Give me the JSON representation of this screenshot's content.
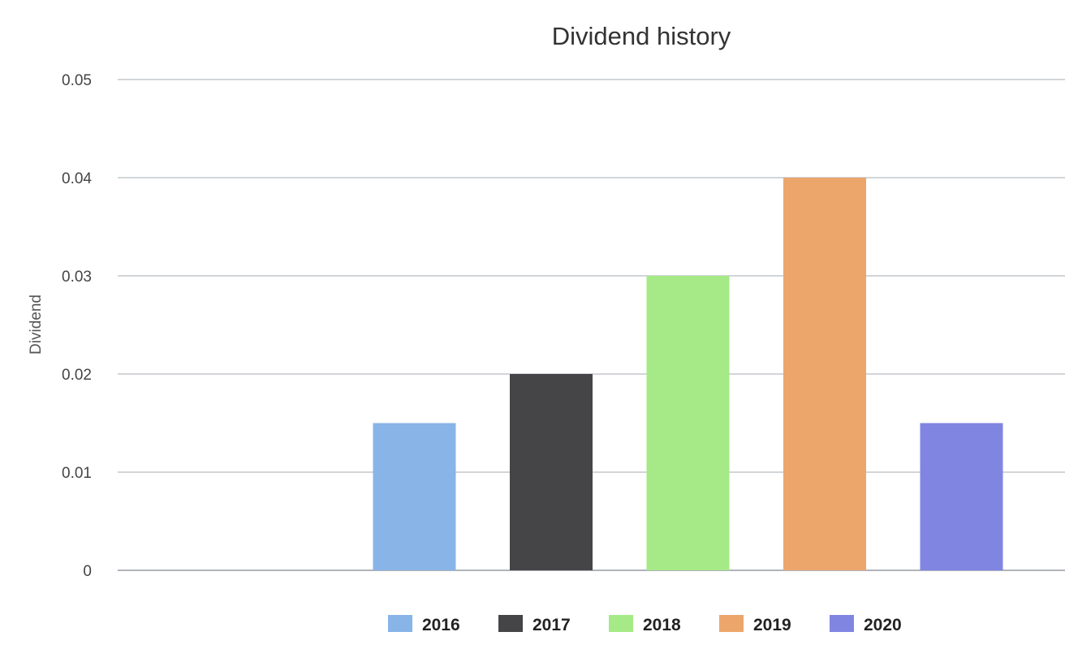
{
  "chart_data": {
    "type": "bar",
    "title": "Dividend history",
    "xlabel": "",
    "ylabel": "Dividend",
    "ylim": [
      0,
      0.05
    ],
    "yticks": [
      "0",
      "0.01",
      "0.02",
      "0.03",
      "0.04",
      "0.05"
    ],
    "grid": true,
    "legend_position": "bottom",
    "series": [
      {
        "name": "2016",
        "value": 0.015,
        "color": "#88b4e7"
      },
      {
        "name": "2017",
        "value": 0.02,
        "color": "#454548"
      },
      {
        "name": "2018",
        "value": 0.03,
        "color": "#a6e987"
      },
      {
        "name": "2019",
        "value": 0.04,
        "color": "#eca66b"
      },
      {
        "name": "2020",
        "value": 0.015,
        "color": "#8185e2"
      }
    ]
  }
}
